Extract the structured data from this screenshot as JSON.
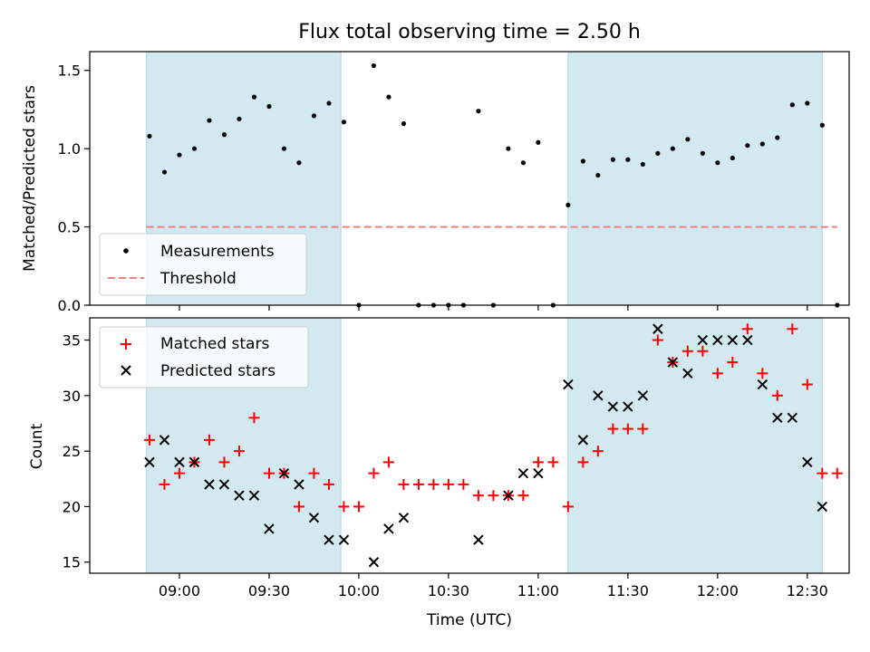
{
  "chart_data": [
    {
      "type": "scatter",
      "title": "Flux total observing time = 2.50 h",
      "xlabel": "",
      "ylabel": "Matched/Predicted stars",
      "ylim": [
        0,
        1.62
      ],
      "xlim_minutes_utc": [
        510,
        764
      ],
      "yticks": [
        "0.0",
        "0.5",
        "1.0",
        "1.5"
      ],
      "grid": false,
      "legend_position": "lower-left",
      "shaded_intervals": [
        [
          "08:49",
          "09:54"
        ],
        [
          "11:10",
          "12:35"
        ]
      ],
      "shade_color": "#d3e9f0",
      "threshold": {
        "name": "Threshold",
        "value": 0.5,
        "x_start": "08:49",
        "x_end": "12:40",
        "color": "#f08080"
      },
      "series": [
        {
          "name": "Measurements",
          "marker": "dot",
          "color": "#000000",
          "x": [
            "08:50",
            "08:55",
            "09:00",
            "09:05",
            "09:10",
            "09:15",
            "09:20",
            "09:25",
            "09:30",
            "09:35",
            "09:40",
            "09:45",
            "09:50",
            "09:55",
            "10:00",
            "10:05",
            "10:10",
            "10:15",
            "10:20",
            "10:25",
            "10:30",
            "10:35",
            "10:40",
            "10:45",
            "10:50",
            "10:55",
            "11:00",
            "11:05",
            "11:10",
            "11:15",
            "11:20",
            "11:25",
            "11:30",
            "11:35",
            "11:40",
            "11:45",
            "11:50",
            "11:55",
            "12:00",
            "12:05",
            "12:10",
            "12:15",
            "12:20",
            "12:25",
            "12:30",
            "12:35",
            "12:40"
          ],
          "values": [
            1.08,
            0.85,
            0.96,
            1.0,
            1.18,
            1.09,
            1.19,
            1.33,
            1.27,
            1.0,
            0.91,
            1.21,
            1.29,
            1.17,
            0.0,
            1.53,
            1.33,
            1.16,
            0.0,
            0.0,
            0.0,
            0.0,
            1.24,
            0.0,
            1.0,
            0.91,
            1.04,
            0.0,
            0.64,
            0.92,
            0.83,
            0.93,
            0.93,
            0.9,
            0.97,
            1.0,
            1.06,
            0.97,
            0.91,
            0.94,
            1.02,
            1.03,
            1.07,
            1.28,
            1.29,
            1.15,
            0.0
          ]
        }
      ]
    },
    {
      "type": "scatter",
      "title": "",
      "xlabel": "Time (UTC)",
      "ylabel": "Count",
      "ylim": [
        14,
        37
      ],
      "xlim_minutes_utc": [
        510,
        764
      ],
      "xticks": [
        "09:00",
        "09:30",
        "10:00",
        "10:30",
        "11:00",
        "11:30",
        "12:00",
        "12:30"
      ],
      "yticks": [
        "15",
        "20",
        "25",
        "30",
        "35"
      ],
      "grid": false,
      "legend_position": "top-left",
      "shaded_intervals": [
        [
          "08:49",
          "09:54"
        ],
        [
          "11:10",
          "12:35"
        ]
      ],
      "shade_color": "#d3e9f0",
      "series": [
        {
          "name": "Matched stars",
          "marker": "plus",
          "color": "#ff0000",
          "x": [
            "08:50",
            "08:55",
            "09:00",
            "09:05",
            "09:10",
            "09:15",
            "09:20",
            "09:25",
            "09:30",
            "09:35",
            "09:40",
            "09:45",
            "09:50",
            "09:55",
            "10:00",
            "10:05",
            "10:10",
            "10:15",
            "10:20",
            "10:25",
            "10:30",
            "10:35",
            "10:40",
            "10:45",
            "10:50",
            "10:55",
            "11:00",
            "11:05",
            "11:10",
            "11:15",
            "11:20",
            "11:25",
            "11:30",
            "11:35",
            "11:40",
            "11:45",
            "11:50",
            "11:55",
            "12:00",
            "12:05",
            "12:10",
            "12:15",
            "12:20",
            "12:25",
            "12:30",
            "12:35",
            "12:40"
          ],
          "values": [
            26,
            22,
            23,
            24,
            26,
            24,
            25,
            28,
            23,
            23,
            20,
            23,
            22,
            20,
            20,
            23,
            24,
            22,
            22,
            22,
            22,
            22,
            21,
            21,
            21,
            21,
            24,
            24,
            20,
            24,
            25,
            27,
            27,
            27,
            35,
            33,
            34,
            34,
            32,
            33,
            36,
            32,
            30,
            36,
            31,
            23,
            23
          ]
        },
        {
          "name": "Predicted stars",
          "marker": "x",
          "color": "#000000",
          "x": [
            "08:50",
            "08:55",
            "09:00",
            "09:05",
            "09:10",
            "09:15",
            "09:20",
            "09:25",
            "09:30",
            "09:35",
            "09:40",
            "09:45",
            "09:50",
            "09:55",
            "10:05",
            "10:10",
            "10:15",
            "10:40",
            "10:50",
            "10:55",
            "11:00",
            "11:10",
            "11:15",
            "11:20",
            "11:25",
            "11:30",
            "11:35",
            "11:40",
            "11:45",
            "11:50",
            "11:55",
            "12:00",
            "12:05",
            "12:10",
            "12:15",
            "12:20",
            "12:25",
            "12:30",
            "12:35"
          ],
          "values": [
            24,
            26,
            24,
            24,
            22,
            22,
            21,
            21,
            18,
            23,
            22,
            19,
            17,
            17,
            15,
            18,
            19,
            17,
            21,
            23,
            23,
            31,
            26,
            30,
            29,
            29,
            30,
            36,
            33,
            32,
            35,
            35,
            35,
            35,
            31,
            28,
            28,
            24,
            20
          ]
        }
      ]
    }
  ]
}
